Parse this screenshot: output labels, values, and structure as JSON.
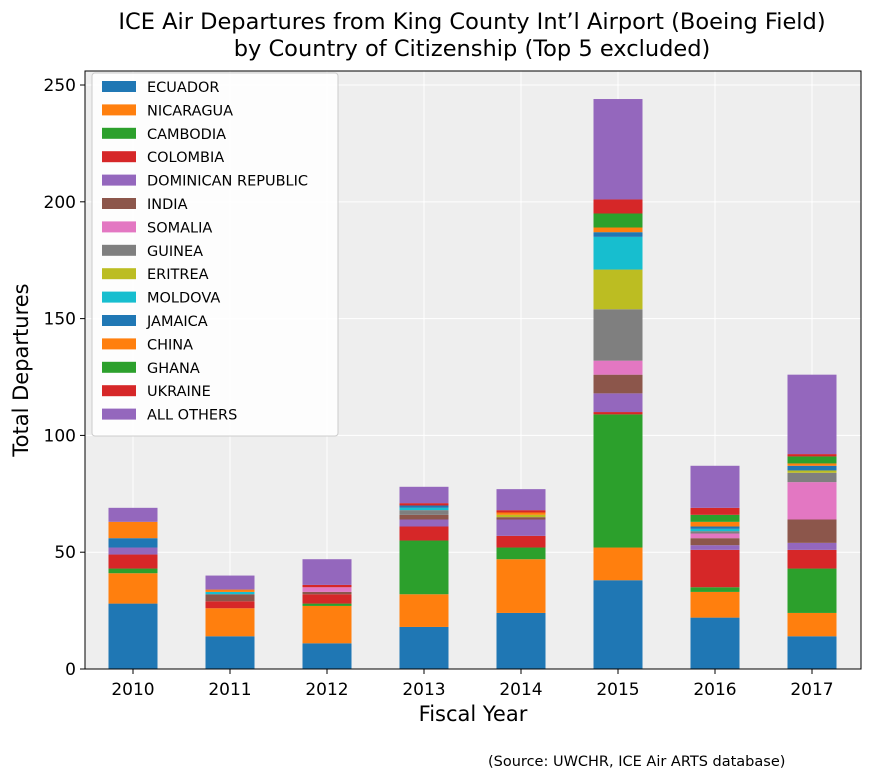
{
  "chart_data": {
    "type": "bar",
    "stacked": true,
    "title": "ICE Air Departures from King County Int’l Airport (Boeing Field)",
    "subtitle": "by Country of Citizenship (Top 5 excluded)",
    "xlabel": "Fiscal Year",
    "ylabel": "Total Departures",
    "ylim": [
      0,
      256
    ],
    "yticks": [
      0,
      50,
      100,
      150,
      200,
      250
    ],
    "grid": true,
    "legend": "top-left",
    "categories": [
      "2010",
      "2011",
      "2012",
      "2013",
      "2014",
      "2015",
      "2016",
      "2017"
    ],
    "series": [
      {
        "name": "ECUADOR",
        "color": "#1f77b4",
        "values": [
          28,
          14,
          11,
          18,
          24,
          38,
          22,
          14
        ]
      },
      {
        "name": "NICARAGUA",
        "color": "#ff7f0e",
        "values": [
          13,
          12,
          16,
          14,
          23,
          14,
          11,
          10
        ]
      },
      {
        "name": "CAMBODIA",
        "color": "#2ca02c",
        "values": [
          2,
          0,
          1,
          23,
          5,
          57,
          2,
          19
        ]
      },
      {
        "name": "COLOMBIA",
        "color": "#d62728",
        "values": [
          6,
          3,
          4,
          6,
          5,
          1,
          16,
          8
        ]
      },
      {
        "name": "DOMINICAN REPUBLIC",
        "color": "#9467bd",
        "values": [
          3,
          0,
          0,
          3,
          7,
          8,
          2,
          3
        ]
      },
      {
        "name": "INDIA",
        "color": "#8c564b",
        "values": [
          0,
          3,
          1,
          2,
          1,
          8,
          3,
          10
        ]
      },
      {
        "name": "SOMALIA",
        "color": "#e377c2",
        "values": [
          0,
          0,
          2,
          0,
          0,
          6,
          2,
          16
        ]
      },
      {
        "name": "GUINEA",
        "color": "#7f7f7f",
        "values": [
          0,
          0,
          0,
          2,
          0,
          22,
          1,
          4
        ]
      },
      {
        "name": "ERITREA",
        "color": "#bcbd22",
        "values": [
          0,
          0,
          0,
          0,
          1,
          17,
          0,
          1
        ]
      },
      {
        "name": "MOLDOVA",
        "color": "#17becf",
        "values": [
          0,
          1,
          0,
          1,
          0,
          14,
          1,
          0
        ]
      },
      {
        "name": "JAMAICA",
        "color": "#1f77b4",
        "values": [
          4,
          0,
          0,
          1,
          0,
          2,
          1,
          2
        ]
      },
      {
        "name": "CHINA",
        "color": "#ff7f0e",
        "values": [
          7,
          1,
          0,
          0,
          1,
          2,
          2,
          1
        ]
      },
      {
        "name": "GHANA",
        "color": "#2ca02c",
        "values": [
          0,
          0,
          0,
          0,
          0,
          6,
          3,
          3
        ]
      },
      {
        "name": "UKRAINE",
        "color": "#d62728",
        "values": [
          0,
          0,
          1,
          1,
          1,
          6,
          3,
          1
        ]
      },
      {
        "name": "ALL OTHERS",
        "color": "#9467bd",
        "values": [
          6,
          6,
          11,
          7,
          9,
          43,
          18,
          34
        ]
      }
    ]
  },
  "source_note": "(Source: UWCHR, ICE Air ARTS database)"
}
